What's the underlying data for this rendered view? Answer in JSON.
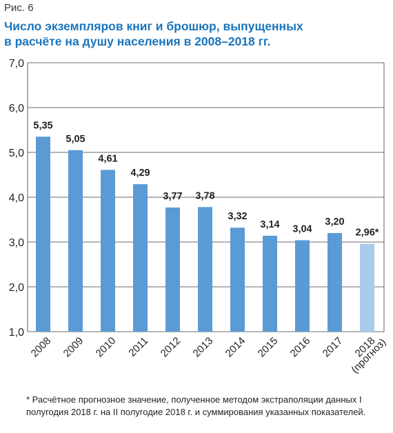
{
  "figure_label": "Рис. 6",
  "title_line1": "Число экземпляров книг и брошюр, выпущенных",
  "title_line2": "в расчёте на душу населения в 2008–2018 гг.",
  "footnote": "* Расчётное прогнозное значение, полученное методом экстраполяции данных I полугодия 2018 г. на II полугодие 2018 г. и суммирования указанных показателей.",
  "colors": {
    "bar": "#5b9bd5",
    "forecast_bar": "#a9ccec",
    "title": "#1b75bc"
  },
  "chart_data": {
    "type": "bar",
    "categories": [
      "2008",
      "2009",
      "2010",
      "2011",
      "2012",
      "2013",
      "2014",
      "2015",
      "2016",
      "2017",
      "2018"
    ],
    "category_sublabels": [
      "",
      "",
      "",
      "",
      "",
      "",
      "",
      "",
      "",
      "",
      "(прогноз)"
    ],
    "values": [
      5.35,
      5.05,
      4.61,
      4.29,
      3.77,
      3.78,
      3.32,
      3.14,
      3.04,
      3.2,
      2.96
    ],
    "value_labels": [
      "5,35",
      "5,05",
      "4,61",
      "4,29",
      "3,77",
      "3,78",
      "3,32",
      "3,14",
      "3,04",
      "3,20",
      "2,96*"
    ],
    "forecast": [
      false,
      false,
      false,
      false,
      false,
      false,
      false,
      false,
      false,
      false,
      true
    ],
    "ylim": [
      1.0,
      7.0
    ],
    "yticks": [
      1.0,
      2.0,
      3.0,
      4.0,
      5.0,
      6.0,
      7.0
    ],
    "ytick_labels": [
      "1,0",
      "2,0",
      "3,0",
      "4,0",
      "5,0",
      "6,0",
      "7,0"
    ],
    "grid": true,
    "xlabel": "",
    "ylabel": ""
  }
}
